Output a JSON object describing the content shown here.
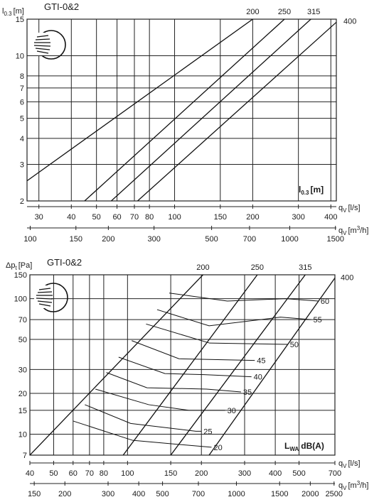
{
  "chart_data": [
    {
      "type": "line",
      "title": "GTI-0&2",
      "ylabel": "l0.3 [m]",
      "ylabel_main": "l",
      "ylabel_sub": "0.3",
      "ylabel_unit": "[m]",
      "y_scale": "log",
      "ylim": [
        2,
        15
      ],
      "y_ticks": [
        2,
        3,
        4,
        5,
        6,
        7,
        8,
        10,
        15
      ],
      "x_scale": "log",
      "xlim_ls": [
        27,
        420
      ],
      "xlabel_ls": "qV [l/s]",
      "xlabel_ls_main": "q",
      "xlabel_ls_sub": "V",
      "xlabel_ls_unit": "[l/s]",
      "x_ticks_ls": [
        30,
        40,
        50,
        60,
        70,
        80,
        100,
        150,
        200,
        300,
        400
      ],
      "xlabel_m3h": "qV [m3/h]",
      "xlabel_m3h_main": "q",
      "xlabel_m3h_sub": "V",
      "xlabel_m3h_unit": "[m",
      "xlabel_m3h_sup": "3",
      "xlabel_m3h_unit_end": "/h]",
      "x_ticks_m3h": [
        100,
        150,
        200,
        300,
        500,
        700,
        1000,
        1500
      ],
      "grid": true,
      "corner_label": "l0.3 [m]",
      "corner_label_main": "l",
      "corner_label_sub": "0.3",
      "corner_label_unit": "[m]",
      "series": [
        {
          "name": "200",
          "x": [
            27,
            200
          ],
          "y": [
            2.5,
            15
          ]
        },
        {
          "name": "250",
          "x": [
            45,
            265
          ],
          "y": [
            2.0,
            15
          ]
        },
        {
          "name": "315",
          "x": [
            57,
            335
          ],
          "y": [
            2.0,
            15
          ]
        },
        {
          "name": "400",
          "x": [
            72,
            420
          ],
          "y": [
            2.0,
            14.5
          ]
        }
      ]
    },
    {
      "type": "line",
      "title": "GTI-0&2",
      "ylabel": "Δpt [Pa]",
      "ylabel_main": "Δp",
      "ylabel_sub": "t",
      "ylabel_unit": "[Pa]",
      "y_scale": "log",
      "ylim": [
        7,
        150
      ],
      "y_ticks": [
        7,
        10,
        15,
        20,
        30,
        50,
        70,
        100,
        150
      ],
      "x_scale": "log",
      "xlim_ls": [
        40,
        700
      ],
      "xlabel_ls": "qV [l/s]",
      "xlabel_ls_main": "q",
      "xlabel_ls_sub": "V",
      "xlabel_ls_unit": "[l/s]",
      "x_ticks_ls": [
        40,
        50,
        60,
        70,
        80,
        100,
        150,
        200,
        300,
        400,
        500,
        700
      ],
      "xlabel_m3h": "qV [m3/h]",
      "xlabel_m3h_main": "q",
      "xlabel_m3h_sub": "V",
      "xlabel_m3h_unit": "[m",
      "xlabel_m3h_sup": "3",
      "xlabel_m3h_unit_end": "/h]",
      "x_ticks_m3h": [
        150,
        200,
        300,
        400,
        500,
        700,
        1000,
        1500,
        2000,
        2500
      ],
      "grid": true,
      "corner_label": "LWA dB(A)",
      "corner_label_main": "L",
      "corner_label_sub": "WA",
      "corner_label_unit": "dB(A)",
      "series": [
        {
          "name": "200",
          "x": [
            40,
            203
          ],
          "y": [
            7,
            150
          ]
        },
        {
          "name": "250",
          "x": [
            96,
            338
          ],
          "y": [
            7,
            150
          ]
        },
        {
          "name": "315",
          "x": [
            150,
            530
          ],
          "y": [
            7,
            150
          ]
        },
        {
          "name": "400",
          "x": [
            215,
            700
          ],
          "y": [
            7,
            142
          ]
        }
      ],
      "sound_levels": [
        {
          "label": "20",
          "x": [
            60,
            105,
            220
          ],
          "y": [
            12.5,
            9,
            8
          ]
        },
        {
          "label": "25",
          "x": [
            67,
            103,
            190,
            200
          ],
          "y": [
            16.5,
            12,
            10.5,
            10.5
          ]
        },
        {
          "label": "30",
          "x": [
            74,
            122,
            178,
            250
          ],
          "y": [
            21.5,
            16.5,
            15,
            15
          ]
        },
        {
          "label": "35",
          "x": [
            82,
            120,
            210,
            290
          ],
          "y": [
            28.5,
            22,
            21.5,
            20.5
          ]
        },
        {
          "label": "40",
          "x": [
            92,
            142,
            205,
            320
          ],
          "y": [
            37,
            28,
            27.5,
            26.5
          ]
        },
        {
          "label": "45",
          "x": [
            104,
            162,
            330
          ],
          "y": [
            49,
            36,
            35
          ]
        },
        {
          "label": "50",
          "x": [
            119,
            216,
            450
          ],
          "y": [
            65,
            47,
            46
          ]
        },
        {
          "label": "55",
          "x": [
            132,
            215,
            420,
            560
          ],
          "y": [
            83,
            63,
            73,
            70
          ]
        },
        {
          "label": "60",
          "x": [
            148,
            255,
            440,
            600
          ],
          "y": [
            110,
            96,
            100,
            96
          ]
        }
      ]
    }
  ]
}
